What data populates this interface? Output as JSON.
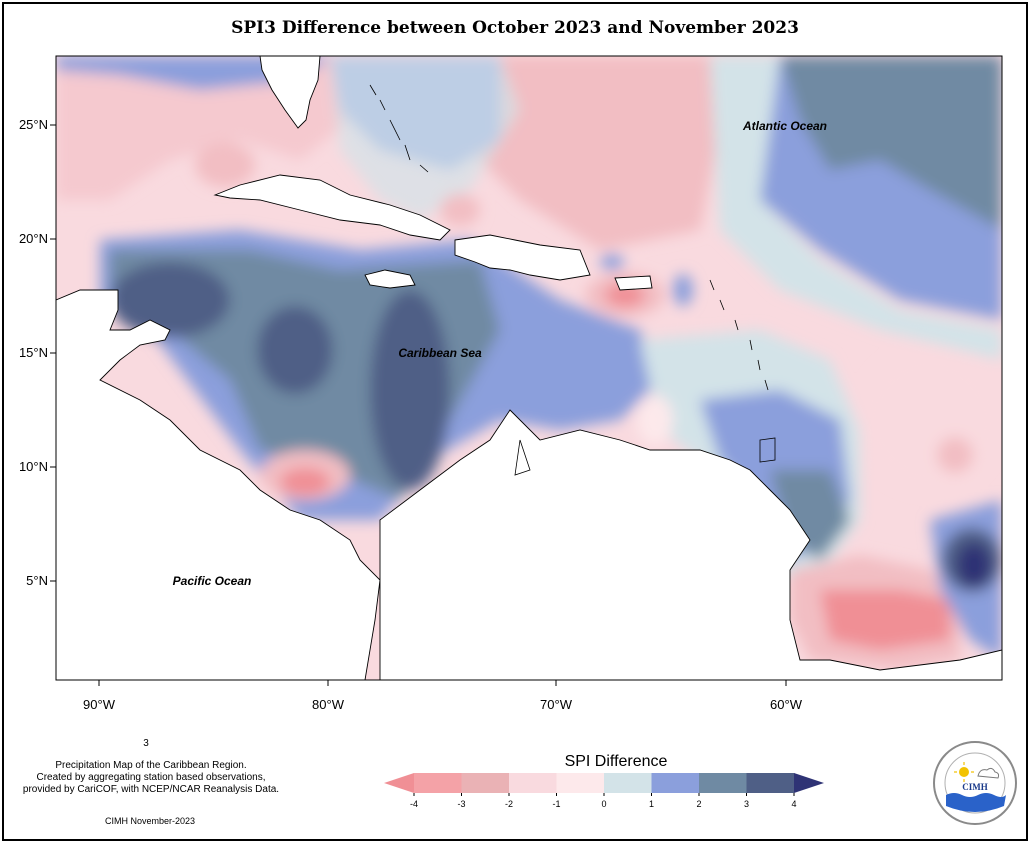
{
  "title": "SPI3 Difference between October 2023 and November 2023",
  "map": {
    "lat_ticks": [
      "25°N",
      "20°N",
      "15°N",
      "10°N",
      "5°N"
    ],
    "lon_ticks": [
      "90°W",
      "80°W",
      "70°W",
      "60°W"
    ],
    "labels": {
      "atlantic": "Atlantic Ocean",
      "caribbean": "Caribbean Sea",
      "pacific": "Pacific Ocean"
    }
  },
  "legend": {
    "title": "SPI Difference",
    "ticks": [
      "-4",
      "-3",
      "-2",
      "-1",
      "0",
      "1",
      "2",
      "3",
      "4"
    ],
    "colors": [
      "#f08f95",
      "#f4a2a7",
      "#eab2b5",
      "#f9dadf",
      "#fde9eb",
      "#d3e3e8",
      "#8b9fdc",
      "#6f8aa3",
      "#4f5f86",
      "#2f3375"
    ]
  },
  "footnote": {
    "marker": "3",
    "lines": [
      "Precipitation Map of the Caribbean Region.",
      "Created by aggregating station based observations,",
      "provided by CariCOF, with NCEP/NCAR Reanalysis Data."
    ],
    "credit": "CIMH November-2023"
  },
  "logo": {
    "text": "CIMH",
    "ring_text": "Caribbean Institute for Meteorology and Hydrology"
  }
}
